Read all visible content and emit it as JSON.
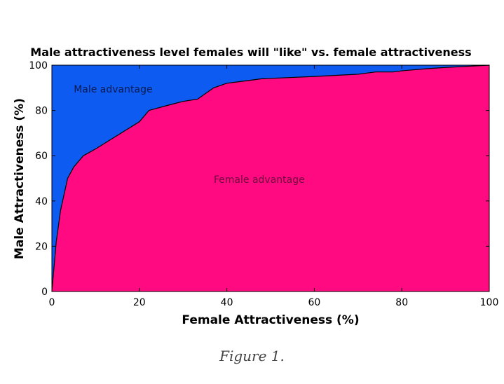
{
  "chart_data": {
    "type": "area",
    "title": "Male attractiveness level females will \"like\" vs. female attractiveness",
    "xlabel": "Female Attractiveness (%)",
    "ylabel": "Male Attractiveness (%)",
    "xlim": [
      0,
      100
    ],
    "ylim": [
      0,
      100
    ],
    "xticks": [
      0,
      20,
      40,
      60,
      80,
      100
    ],
    "yticks": [
      0,
      20,
      40,
      60,
      80,
      100
    ],
    "grid": false,
    "series": [
      {
        "x": [
          0,
          1,
          2,
          3.6,
          5,
          7.2,
          10,
          15,
          20,
          22.2,
          26,
          30,
          33.3,
          37,
          40,
          44,
          48,
          60,
          70,
          72,
          74,
          78,
          80,
          86,
          90,
          95,
          100
        ],
        "y": [
          0,
          22,
          36,
          50,
          55,
          60,
          63,
          69,
          75,
          80,
          82,
          84,
          85,
          90,
          92,
          93,
          94,
          95,
          96,
          96.5,
          97,
          97,
          97.5,
          98.5,
          99,
          99.5,
          100
        ]
      }
    ],
    "annotations": [
      {
        "text": "Male advantage",
        "x": 5,
        "y": 88
      },
      {
        "text": "Female advantage",
        "x": 37,
        "y": 48
      }
    ],
    "colors": {
      "upper_fill": "#0D5BF0",
      "lower_fill": "#FF0A80",
      "male_text": "#0A1A50",
      "female_text": "#6E0A3C"
    }
  },
  "caption": "Figure 1."
}
